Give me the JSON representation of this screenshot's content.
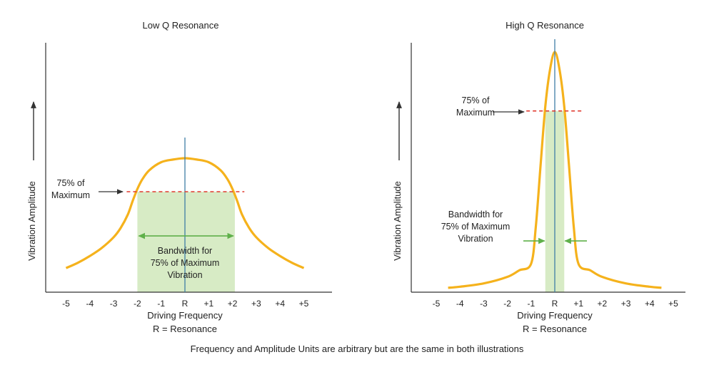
{
  "footnote": "Frequency and Amplitude Units are arbitrary but are the same in both illustrations",
  "colors": {
    "curve": "#f5b21c",
    "band": "#d7ebc5",
    "center_line": "#3f7ea6",
    "threshold_line": "#e03a2f",
    "bandwidth_arrow": "#5fb04a",
    "axis": "#333333"
  },
  "chart_data": [
    {
      "type": "line",
      "title": "Low Q Resonance",
      "xlabel": "Driving Frequency",
      "xlabel_sub": "R = Resonance",
      "ylabel": "Vibration Amplitude",
      "x_ticks": [
        "-5",
        "-4",
        "-3",
        "-2",
        "-1",
        "R",
        "+1",
        "+2",
        "+3",
        "+4",
        "+5"
      ],
      "xlim": [
        -6.1,
        6.1
      ],
      "ylim": [
        0,
        1.35
      ],
      "curve": {
        "x": [
          -5,
          -4.5,
          -4,
          -3.5,
          -3,
          -2.7,
          -2.4,
          -2.2,
          -2,
          -1.8,
          -1.5,
          -1,
          -0.5,
          0,
          0.5,
          1,
          1.5,
          1.8,
          2,
          2.2,
          2.4,
          2.7,
          3,
          3.5,
          4,
          4.5,
          5
        ],
        "y": [
          0.18,
          0.22,
          0.27,
          0.33,
          0.41,
          0.48,
          0.58,
          0.68,
          0.77,
          0.84,
          0.91,
          0.97,
          0.99,
          1.0,
          0.99,
          0.97,
          0.91,
          0.84,
          0.77,
          0.68,
          0.58,
          0.48,
          0.41,
          0.33,
          0.27,
          0.22,
          0.18
        ]
      },
      "threshold": {
        "y": 0.75,
        "x_range": [
          -2.45,
          2.5
        ],
        "label": [
          "75% of",
          "Maximum"
        ]
      },
      "band": {
        "x_range": [
          -2.0,
          2.1
        ]
      },
      "bandwidth": {
        "label": [
          "Bandwidth for",
          "75% of Maximum",
          "Vibration"
        ],
        "arrow_x_range": [
          -2.0,
          2.1
        ],
        "arrow_y": 0.42
      }
    },
    {
      "type": "line",
      "title": "High Q Resonance",
      "xlabel": "Driving Frequency",
      "xlabel_sub": "R = Resonance",
      "ylabel": "Vibration Amplitude",
      "x_ticks": [
        "-5",
        "-4",
        "-3",
        "-2",
        "-1",
        "R",
        "+1",
        "+2",
        "+3",
        "+4",
        "+5"
      ],
      "xlim": [
        -6.1,
        6.1
      ],
      "ylim": [
        0,
        1.3
      ],
      "curve": {
        "x": [
          -4.5,
          -4,
          -3,
          -2,
          -1.5,
          -1,
          -0.8,
          -0.6,
          -0.4,
          -0.2,
          0,
          0.2,
          0.4,
          0.6,
          0.8,
          1,
          1.5,
          2,
          3,
          4,
          4.5
        ],
        "y": [
          0.02,
          0.025,
          0.04,
          0.07,
          0.1,
          0.13,
          0.3,
          0.58,
          0.85,
          1.02,
          1.1,
          1.02,
          0.85,
          0.58,
          0.3,
          0.13,
          0.1,
          0.07,
          0.04,
          0.025,
          0.02
        ]
      },
      "threshold": {
        "y": 0.83,
        "x_range": [
          -1.2,
          1.2
        ],
        "label": [
          "75% of",
          "Maximum"
        ]
      },
      "band": {
        "x_range": [
          -0.4,
          0.4
        ]
      },
      "bandwidth": {
        "label": [
          "Bandwidth for",
          "75% of Maximum",
          "Vibration"
        ],
        "arrow_y": 0.3
      }
    }
  ]
}
